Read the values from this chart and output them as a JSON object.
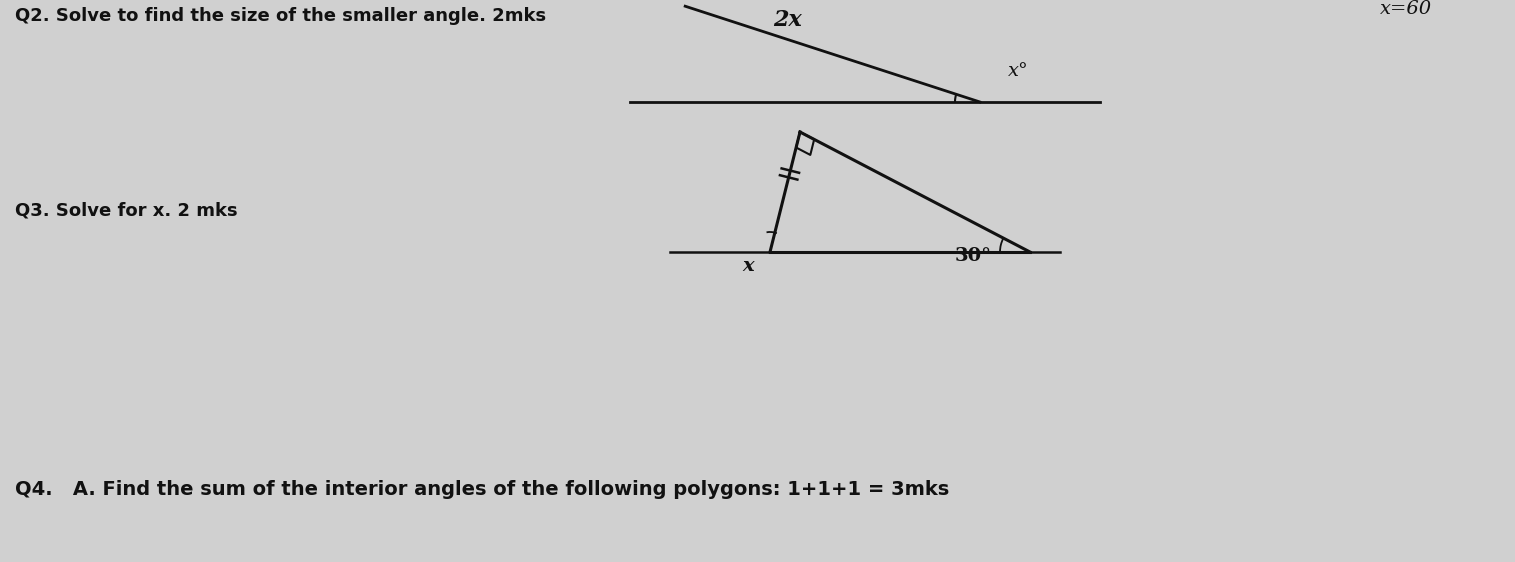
{
  "bg_color": "#d0d0d0",
  "q2_text": "Q2. Solve to find the size of the smaller angle. 2mks",
  "q3_text": "Q3. Solve for x. 2 mks",
  "q4_text": "Q4.   A. Find the sum of the interior angles of the following polygons: 1+1+1 = 3mks",
  "top_right_text": "x=60",
  "q2_label_2x": "2x",
  "q2_label_x": "x°",
  "q3_label_x": "x",
  "q3_label_30": "30°",
  "text_color": "#111111",
  "line_color": "#111111",
  "font_size_q": 13,
  "font_size_labels": 12
}
